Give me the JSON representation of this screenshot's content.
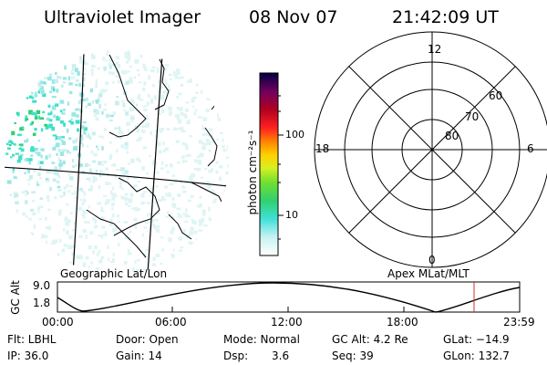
{
  "header": {
    "instrument": "Ultraviolet Imager",
    "date": "08 Nov 07",
    "time": "21:42:09 UT"
  },
  "colorbar": {
    "unit_label": "photon cm⁻²s⁻¹",
    "ticks": [
      "100",
      "10"
    ]
  },
  "polar_plot": {
    "mlt_labels": {
      "top": "12",
      "left": "18",
      "right": "6",
      "bottom": "0"
    },
    "mlat_rings": [
      "60",
      "70",
      "80"
    ]
  },
  "map_captions": {
    "geographic": "Geographic Lat/Lon",
    "apex": "Apex MLat/MLT"
  },
  "altitude_strip": {
    "axis_label": "GC Alt",
    "y_ticks": [
      "9.0",
      "1.8"
    ],
    "x_ticks": [
      "00:00",
      "06:00",
      "12:00",
      "18:00",
      "23:59"
    ],
    "current_marker_color": "#d03030"
  },
  "status": {
    "row1": {
      "filter": "Flt: LBHL",
      "door": "Door: Open",
      "mode": "Mode: Normal",
      "gc_alt": "GC Alt: 4.2 Re",
      "glat": "GLat: −14.9"
    },
    "row2": {
      "ip": "IP: 36.0",
      "gain": "Gain: 14",
      "dsp_label": "Dsp:",
      "dsp_value": "3.6",
      "seq": "Seq: 39",
      "glon": "GLon: 132.7"
    }
  }
}
